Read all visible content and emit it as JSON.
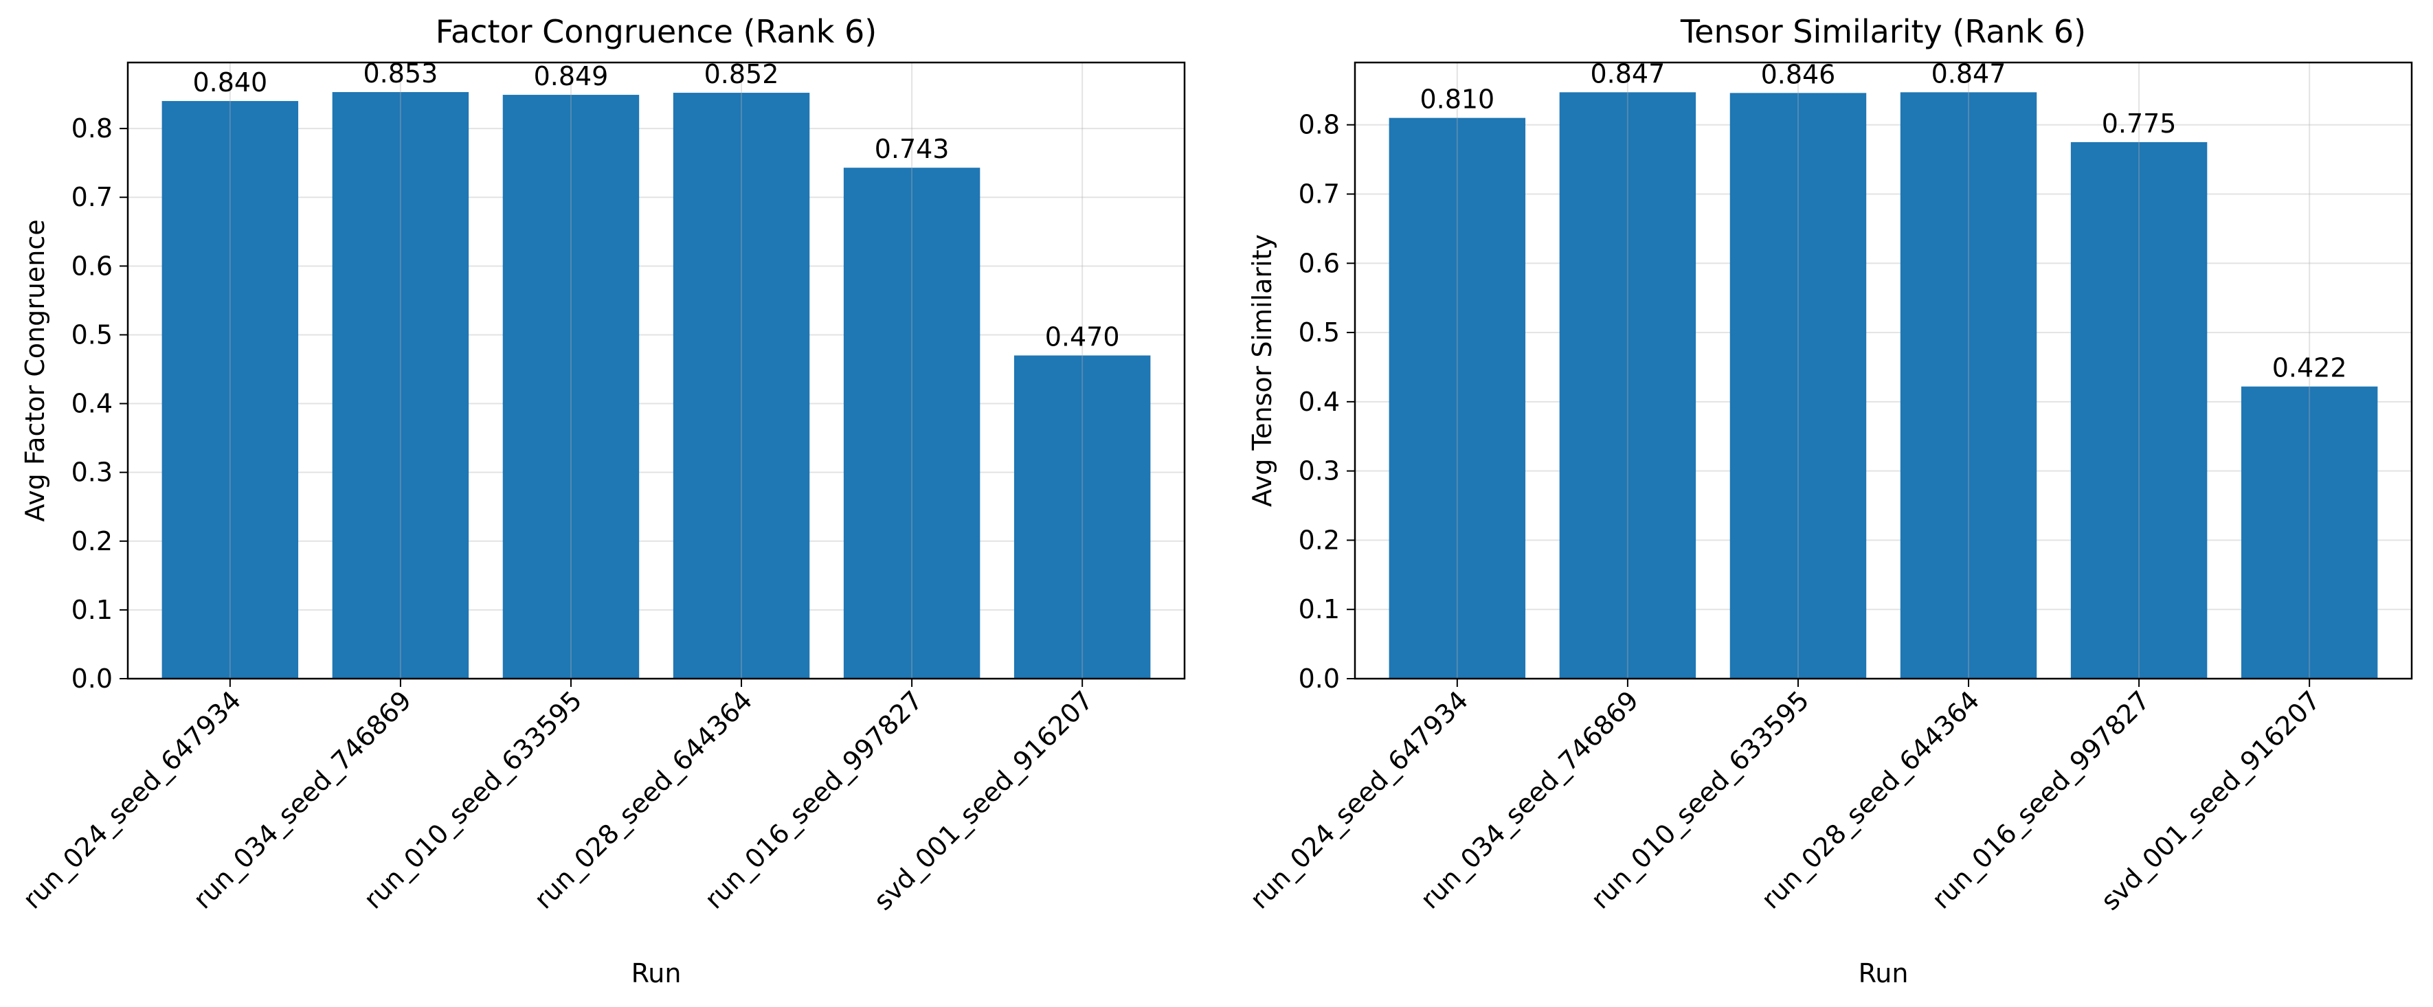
{
  "chart_data": [
    {
      "type": "bar",
      "title": "Factor Congruence (Rank 6)",
      "xlabel": "Run",
      "ylabel": "Avg Factor Congruence",
      "categories": [
        "run_024_seed_647934",
        "run_034_seed_746869",
        "run_010_seed_633595",
        "run_028_seed_644364",
        "run_016_seed_997827",
        "svd_001_seed_916207"
      ],
      "values": [
        0.84,
        0.853,
        0.849,
        0.852,
        0.743,
        0.47
      ],
      "value_labels": [
        "0.840",
        "0.853",
        "0.849",
        "0.852",
        "0.743",
        "0.470"
      ],
      "ylim": [
        0,
        0.896
      ],
      "yticks": [
        "0.0",
        "0.1",
        "0.2",
        "0.3",
        "0.4",
        "0.5",
        "0.6",
        "0.7",
        "0.8"
      ],
      "grid": true,
      "bar_color": "#1f77b4"
    },
    {
      "type": "bar",
      "title": "Tensor Similarity (Rank 6)",
      "xlabel": "Run",
      "ylabel": "Avg Tensor Similarity",
      "categories": [
        "run_024_seed_647934",
        "run_034_seed_746869",
        "run_010_seed_633595",
        "run_028_seed_644364",
        "run_016_seed_997827",
        "svd_001_seed_916207"
      ],
      "values": [
        0.81,
        0.847,
        0.846,
        0.847,
        0.775,
        0.422
      ],
      "value_labels": [
        "0.810",
        "0.847",
        "0.846",
        "0.847",
        "0.775",
        "0.422"
      ],
      "ylim": [
        0,
        0.89
      ],
      "yticks": [
        "0.0",
        "0.1",
        "0.2",
        "0.3",
        "0.4",
        "0.5",
        "0.6",
        "0.7",
        "0.8"
      ],
      "grid": true,
      "bar_color": "#1f77b4"
    }
  ]
}
